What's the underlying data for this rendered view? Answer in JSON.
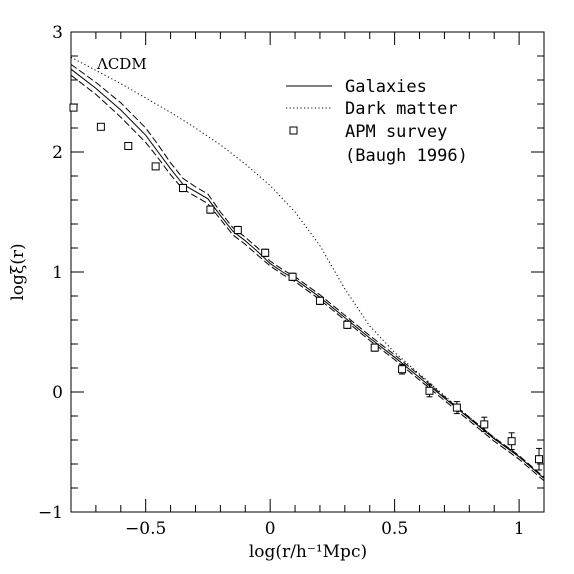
{
  "chart_data": {
    "type": "line",
    "title": "",
    "xlabel": "log(r/h⁻¹Mpc)",
    "ylabel": "logξ(r)",
    "xlim": [
      -0.8,
      1.1
    ],
    "ylim": [
      -1,
      3
    ],
    "xticks": [
      -0.5,
      0,
      0.5,
      1
    ],
    "xtick_labels": [
      "−0.5",
      "0",
      "0.5",
      "1"
    ],
    "yticks": [
      -1,
      0,
      1,
      2,
      3
    ],
    "ytick_labels": [
      "−1",
      "0",
      "1",
      "2",
      "3"
    ],
    "model_label": "ΛCDM",
    "legend_position": "top-right",
    "legend": [
      {
        "label": "Galaxies",
        "style": "solid"
      },
      {
        "label": "Dark matter",
        "style": "dotted"
      },
      {
        "label": "APM survey",
        "style": "square-marker"
      },
      {
        "label": "(Baugh 1996)",
        "style": "none"
      }
    ],
    "series": [
      {
        "name": "Galaxies",
        "style": "solid",
        "x": [
          -0.8,
          -0.7,
          -0.6,
          -0.5,
          -0.45,
          -0.4,
          -0.35,
          -0.3,
          -0.25,
          -0.2,
          -0.15,
          -0.1,
          -0.05,
          0.0,
          0.05,
          0.1,
          0.2,
          0.3,
          0.4,
          0.5,
          0.6,
          0.7,
          0.8,
          0.9,
          1.0,
          1.1
        ],
        "y": [
          2.69,
          2.53,
          2.35,
          2.14,
          2.0,
          1.86,
          1.73,
          1.67,
          1.61,
          1.47,
          1.34,
          1.26,
          1.17,
          1.07,
          1.0,
          0.94,
          0.79,
          0.62,
          0.45,
          0.29,
          0.12,
          -0.05,
          -0.22,
          -0.39,
          -0.54,
          -0.72
        ]
      },
      {
        "name": "Galaxies (upper)",
        "style": "dashed",
        "x": [
          -0.8,
          -0.7,
          -0.6,
          -0.5,
          -0.45,
          -0.4,
          -0.35,
          -0.3,
          -0.25,
          -0.2,
          -0.15,
          -0.1,
          -0.05,
          0.0,
          0.05,
          0.1,
          0.2,
          0.3,
          0.4,
          0.5,
          0.6,
          0.7,
          0.8,
          0.9,
          1.0,
          1.1
        ],
        "y": [
          2.73,
          2.58,
          2.41,
          2.2,
          2.06,
          1.91,
          1.78,
          1.71,
          1.65,
          1.5,
          1.37,
          1.29,
          1.2,
          1.09,
          1.02,
          0.96,
          0.81,
          0.64,
          0.47,
          0.31,
          0.14,
          -0.04,
          -0.21,
          -0.38,
          -0.53,
          -0.71
        ]
      },
      {
        "name": "Galaxies (lower)",
        "style": "dashed",
        "x": [
          -0.8,
          -0.7,
          -0.6,
          -0.5,
          -0.45,
          -0.4,
          -0.35,
          -0.3,
          -0.25,
          -0.2,
          -0.15,
          -0.1,
          -0.05,
          0.0,
          0.05,
          0.1,
          0.2,
          0.3,
          0.4,
          0.5,
          0.6,
          0.7,
          0.8,
          0.9,
          1.0,
          1.1
        ],
        "y": [
          2.64,
          2.48,
          2.29,
          2.08,
          1.95,
          1.81,
          1.69,
          1.63,
          1.57,
          1.44,
          1.31,
          1.23,
          1.14,
          1.05,
          0.98,
          0.92,
          0.77,
          0.6,
          0.43,
          0.27,
          0.1,
          -0.07,
          -0.24,
          -0.41,
          -0.56,
          -0.74
        ]
      },
      {
        "name": "Dark matter",
        "style": "dotted",
        "x": [
          -0.8,
          -0.7,
          -0.6,
          -0.5,
          -0.4,
          -0.3,
          -0.2,
          -0.1,
          0.0,
          0.1,
          0.2,
          0.3,
          0.4,
          0.5,
          0.6,
          0.7,
          0.8,
          0.9,
          1.0,
          1.1
        ],
        "y": [
          2.79,
          2.68,
          2.57,
          2.45,
          2.33,
          2.2,
          2.06,
          1.9,
          1.72,
          1.5,
          1.22,
          0.86,
          0.55,
          0.33,
          0.15,
          -0.03,
          -0.21,
          -0.38,
          -0.54,
          -0.72
        ]
      },
      {
        "name": "APM survey",
        "style": "markers",
        "x": [
          -0.79,
          -0.68,
          -0.57,
          -0.46,
          -0.35,
          -0.24,
          -0.13,
          -0.02,
          0.09,
          0.2,
          0.31,
          0.42,
          0.53,
          0.64,
          0.75,
          0.86,
          0.97,
          1.08
        ],
        "y": [
          2.37,
          2.21,
          2.05,
          1.88,
          1.7,
          1.52,
          1.35,
          1.16,
          0.96,
          0.76,
          0.56,
          0.37,
          0.19,
          0.01,
          -0.13,
          -0.27,
          -0.41,
          -0.56
        ],
        "err": [
          0.0,
          0.0,
          0.0,
          0.0,
          0.03,
          0.03,
          0.03,
          0.03,
          0.03,
          0.03,
          0.03,
          0.03,
          0.04,
          0.05,
          0.05,
          0.06,
          0.07,
          0.09
        ]
      }
    ]
  }
}
